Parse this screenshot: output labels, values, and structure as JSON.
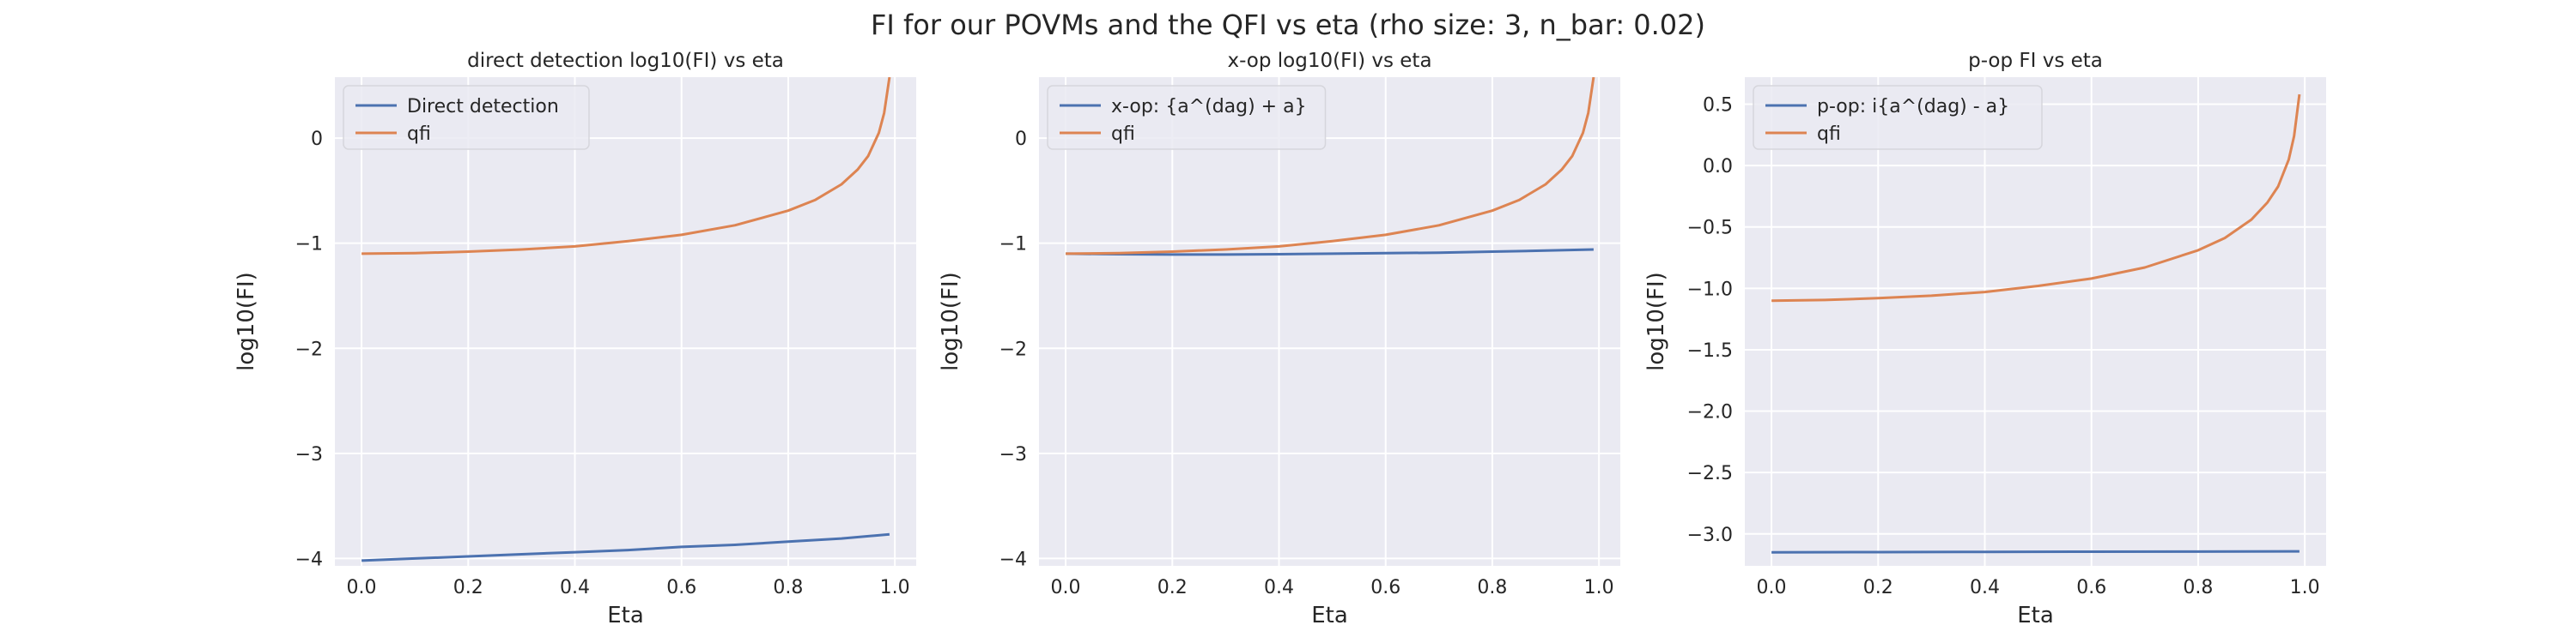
{
  "figure": {
    "suptitle": "FI for our POVMs and the QFI vs eta (rho size: 3, n_bar: 0.02)"
  },
  "colors": {
    "background": "#eaeaf2",
    "grid": "#ffffff",
    "series_blue": "#4c72b0",
    "series_orange": "#dd8452"
  },
  "chart_data": [
    {
      "type": "line",
      "title": "direct detection log10(FI) vs eta",
      "xlabel": "Eta",
      "ylabel": "log10(FI)",
      "xlim": [
        -0.05,
        1.04
      ],
      "ylim": [
        -4.07,
        0.58
      ],
      "xticks": [
        0.0,
        0.2,
        0.4,
        0.6,
        0.8,
        1.0
      ],
      "xtick_labels": [
        "0.0",
        "0.2",
        "0.4",
        "0.6",
        "0.8",
        "1.0"
      ],
      "yticks": [
        -4,
        -3,
        -2,
        -1,
        0
      ],
      "ytick_labels": [
        "−4",
        "−3",
        "−2",
        "−1",
        "0"
      ],
      "legend": "top-left",
      "grid": true,
      "series": [
        {
          "name": "Direct detection",
          "color": "#4c72b0",
          "x": [
            0.0,
            0.1,
            0.2,
            0.3,
            0.4,
            0.5,
            0.6,
            0.7,
            0.8,
            0.9,
            0.99
          ],
          "y": [
            -4.02,
            -4.0,
            -3.98,
            -3.96,
            -3.94,
            -3.92,
            -3.89,
            -3.87,
            -3.84,
            -3.81,
            -3.77
          ]
        },
        {
          "name": "qfi",
          "color": "#dd8452",
          "x": [
            0.0,
            0.1,
            0.2,
            0.3,
            0.4,
            0.5,
            0.6,
            0.7,
            0.8,
            0.85,
            0.9,
            0.93,
            0.95,
            0.97,
            0.98,
            0.99
          ],
          "y": [
            -1.1,
            -1.095,
            -1.08,
            -1.06,
            -1.03,
            -0.98,
            -0.92,
            -0.83,
            -0.69,
            -0.59,
            -0.44,
            -0.3,
            -0.17,
            0.05,
            0.24,
            0.58
          ]
        }
      ]
    },
    {
      "type": "line",
      "title": "x-op log10(FI) vs eta",
      "xlabel": "Eta",
      "ylabel": "log10(FI)",
      "xlim": [
        -0.05,
        1.04
      ],
      "ylim": [
        -4.07,
        0.58
      ],
      "xticks": [
        0.0,
        0.2,
        0.4,
        0.6,
        0.8,
        1.0
      ],
      "xtick_labels": [
        "0.0",
        "0.2",
        "0.4",
        "0.6",
        "0.8",
        "1.0"
      ],
      "yticks": [
        -4,
        -3,
        -2,
        -1,
        0
      ],
      "ytick_labels": [
        "−4",
        "−3",
        "−2",
        "−1",
        "0"
      ],
      "legend": "top-left",
      "grid": true,
      "series": [
        {
          "name": "x-op: {a^(dag) + a}",
          "color": "#4c72b0",
          "x": [
            0.0,
            0.1,
            0.2,
            0.3,
            0.4,
            0.5,
            0.6,
            0.7,
            0.8,
            0.9,
            0.99
          ],
          "y": [
            -1.1,
            -1.105,
            -1.108,
            -1.108,
            -1.105,
            -1.1,
            -1.095,
            -1.09,
            -1.08,
            -1.07,
            -1.06
          ]
        },
        {
          "name": "qfi",
          "color": "#dd8452",
          "x": [
            0.0,
            0.1,
            0.2,
            0.3,
            0.4,
            0.5,
            0.6,
            0.7,
            0.8,
            0.85,
            0.9,
            0.93,
            0.95,
            0.97,
            0.98,
            0.99
          ],
          "y": [
            -1.1,
            -1.095,
            -1.08,
            -1.06,
            -1.03,
            -0.98,
            -0.92,
            -0.83,
            -0.69,
            -0.59,
            -0.44,
            -0.3,
            -0.17,
            0.05,
            0.24,
            0.58
          ]
        }
      ]
    },
    {
      "type": "line",
      "title": "p-op FI vs eta",
      "xlabel": "Eta",
      "ylabel": "log10(FI)",
      "xlim": [
        -0.05,
        1.04
      ],
      "ylim": [
        -3.26,
        0.72
      ],
      "xticks": [
        0.0,
        0.2,
        0.4,
        0.6,
        0.8,
        1.0
      ],
      "xtick_labels": [
        "0.0",
        "0.2",
        "0.4",
        "0.6",
        "0.8",
        "1.0"
      ],
      "yticks": [
        -3.0,
        -2.5,
        -2.0,
        -1.5,
        -1.0,
        -0.5,
        0.0,
        0.5
      ],
      "ytick_labels": [
        "−3.0",
        "−2.5",
        "−2.0",
        "−1.5",
        "−1.0",
        "−0.5",
        "0.0",
        "0.5"
      ],
      "legend": "top-left",
      "grid": true,
      "series": [
        {
          "name": "p-op: i{a^(dag) - a}",
          "color": "#4c72b0",
          "x": [
            0.0,
            0.2,
            0.4,
            0.6,
            0.8,
            0.99
          ],
          "y": [
            -3.15,
            -3.148,
            -3.146,
            -3.145,
            -3.144,
            -3.142
          ]
        },
        {
          "name": "qfi",
          "color": "#dd8452",
          "x": [
            0.0,
            0.1,
            0.2,
            0.3,
            0.4,
            0.5,
            0.6,
            0.7,
            0.8,
            0.85,
            0.9,
            0.93,
            0.95,
            0.97,
            0.98,
            0.99
          ],
          "y": [
            -1.1,
            -1.095,
            -1.08,
            -1.06,
            -1.03,
            -0.98,
            -0.92,
            -0.83,
            -0.69,
            -0.59,
            -0.44,
            -0.3,
            -0.17,
            0.05,
            0.24,
            0.58
          ]
        }
      ]
    }
  ]
}
